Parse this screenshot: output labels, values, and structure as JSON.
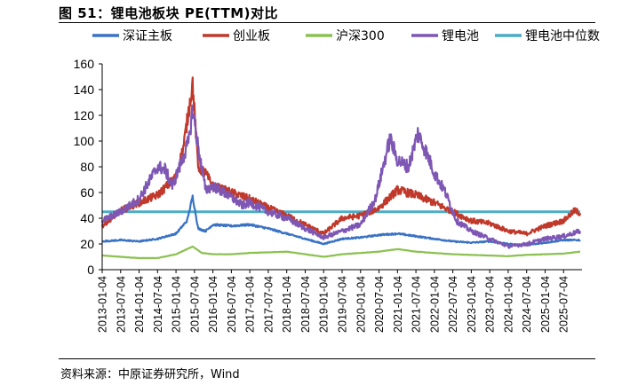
{
  "figure_title": "图 51：锂电池板块 PE(TTM)对比",
  "source": "资料来源：中原证券研究所，Wind",
  "chart_data": {
    "type": "line",
    "title": "锂电池板块 PE(TTM)对比",
    "xlabel": "",
    "ylabel": "",
    "ylim": [
      0,
      160
    ],
    "yticks": [
      0,
      20,
      40,
      60,
      80,
      100,
      120,
      140,
      160
    ],
    "x_range": [
      "2013-01-04",
      "2025-12-31"
    ],
    "x_tick_labels": [
      "2013-01-04",
      "2013-07-04",
      "2014-01-04",
      "2014-07-04",
      "2015-01-04",
      "2015-07-04",
      "2016-01-04",
      "2016-07-04",
      "2017-01-04",
      "2017-07-04",
      "2018-01-04",
      "2018-07-04",
      "2019-01-04",
      "2019-07-04",
      "2020-01-04",
      "2020-07-04",
      "2021-01-04",
      "2021-07-04",
      "2022-01-04",
      "2022-07-04",
      "2023-01-04",
      "2023-07-04",
      "2024-01-04",
      "2024-07-04",
      "2025-01-04",
      "2025-07-04"
    ],
    "grid": false,
    "legend_position": "top",
    "series": [
      {
        "name": "深证主板",
        "color": "#3A72C4",
        "points": [
          [
            2013.0,
            22
          ],
          [
            2013.5,
            23
          ],
          [
            2014.0,
            22
          ],
          [
            2014.5,
            24
          ],
          [
            2015.0,
            28
          ],
          [
            2015.3,
            38
          ],
          [
            2015.45,
            57
          ],
          [
            2015.6,
            32
          ],
          [
            2015.8,
            30
          ],
          [
            2016.0,
            35
          ],
          [
            2016.5,
            34
          ],
          [
            2017.0,
            35
          ],
          [
            2017.5,
            32
          ],
          [
            2018.0,
            28
          ],
          [
            2018.5,
            24
          ],
          [
            2019.0,
            20
          ],
          [
            2019.5,
            24
          ],
          [
            2020.0,
            25
          ],
          [
            2020.5,
            27
          ],
          [
            2021.0,
            28
          ],
          [
            2021.5,
            26
          ],
          [
            2022.0,
            24
          ],
          [
            2022.5,
            22
          ],
          [
            2023.0,
            21
          ],
          [
            2023.5,
            22
          ],
          [
            2024.0,
            20
          ],
          [
            2024.5,
            19
          ],
          [
            2025.0,
            21
          ],
          [
            2025.5,
            23
          ],
          [
            2025.95,
            23
          ]
        ]
      },
      {
        "name": "创业板",
        "color": "#C0392B",
        "points": [
          [
            2013.0,
            34
          ],
          [
            2013.5,
            46
          ],
          [
            2014.0,
            52
          ],
          [
            2014.5,
            58
          ],
          [
            2015.0,
            72
          ],
          [
            2015.2,
            95
          ],
          [
            2015.45,
            145
          ],
          [
            2015.6,
            80
          ],
          [
            2015.8,
            75
          ],
          [
            2016.0,
            65
          ],
          [
            2016.5,
            60
          ],
          [
            2017.0,
            55
          ],
          [
            2017.5,
            48
          ],
          [
            2018.0,
            42
          ],
          [
            2018.5,
            35
          ],
          [
            2019.0,
            28
          ],
          [
            2019.5,
            40
          ],
          [
            2020.0,
            42
          ],
          [
            2020.5,
            48
          ],
          [
            2021.0,
            62
          ],
          [
            2021.5,
            58
          ],
          [
            2022.0,
            52
          ],
          [
            2022.5,
            45
          ],
          [
            2023.0,
            38
          ],
          [
            2023.5,
            36
          ],
          [
            2024.0,
            30
          ],
          [
            2024.5,
            28
          ],
          [
            2025.0,
            34
          ],
          [
            2025.5,
            38
          ],
          [
            2025.8,
            46
          ],
          [
            2025.95,
            44
          ]
        ]
      },
      {
        "name": "沪深300",
        "color": "#8CC152",
        "points": [
          [
            2013.0,
            11
          ],
          [
            2013.5,
            10
          ],
          [
            2014.0,
            9
          ],
          [
            2014.5,
            9
          ],
          [
            2015.0,
            12
          ],
          [
            2015.45,
            18
          ],
          [
            2015.7,
            13
          ],
          [
            2016.0,
            12
          ],
          [
            2016.5,
            12
          ],
          [
            2017.0,
            13
          ],
          [
            2017.5,
            13.5
          ],
          [
            2018.0,
            14
          ],
          [
            2018.5,
            12
          ],
          [
            2019.0,
            10
          ],
          [
            2019.5,
            12
          ],
          [
            2020.0,
            13
          ],
          [
            2020.5,
            14
          ],
          [
            2021.0,
            16
          ],
          [
            2021.5,
            14
          ],
          [
            2022.0,
            13
          ],
          [
            2022.5,
            12
          ],
          [
            2023.0,
            11.5
          ],
          [
            2023.5,
            11
          ],
          [
            2024.0,
            10.5
          ],
          [
            2024.5,
            11.5
          ],
          [
            2025.0,
            12
          ],
          [
            2025.5,
            12.5
          ],
          [
            2025.95,
            14
          ]
        ]
      },
      {
        "name": "锂电池",
        "color": "#7E57B5",
        "points": [
          [
            2013.0,
            38
          ],
          [
            2013.5,
            45
          ],
          [
            2014.0,
            55
          ],
          [
            2014.3,
            70
          ],
          [
            2014.5,
            80
          ],
          [
            2014.7,
            78
          ],
          [
            2014.9,
            65
          ],
          [
            2015.1,
            80
          ],
          [
            2015.35,
            100
          ],
          [
            2015.45,
            125
          ],
          [
            2015.6,
            95
          ],
          [
            2015.8,
            62
          ],
          [
            2016.0,
            65
          ],
          [
            2016.4,
            58
          ],
          [
            2016.8,
            50
          ],
          [
            2017.0,
            52
          ],
          [
            2017.5,
            45
          ],
          [
            2018.0,
            40
          ],
          [
            2018.5,
            32
          ],
          [
            2019.0,
            25
          ],
          [
            2019.5,
            30
          ],
          [
            2020.0,
            35
          ],
          [
            2020.4,
            55
          ],
          [
            2020.8,
            102
          ],
          [
            2021.0,
            85
          ],
          [
            2021.3,
            80
          ],
          [
            2021.55,
            106
          ],
          [
            2021.8,
            90
          ],
          [
            2022.0,
            75
          ],
          [
            2022.3,
            60
          ],
          [
            2022.6,
            38
          ],
          [
            2023.0,
            30
          ],
          [
            2023.5,
            24
          ],
          [
            2024.0,
            18
          ],
          [
            2024.5,
            20
          ],
          [
            2025.0,
            24
          ],
          [
            2025.5,
            26
          ],
          [
            2025.95,
            30
          ]
        ]
      },
      {
        "name": "锂电池中位数",
        "color": "#4BACC6",
        "points": [
          [
            2013.0,
            45
          ],
          [
            2025.95,
            45
          ]
        ]
      }
    ]
  }
}
